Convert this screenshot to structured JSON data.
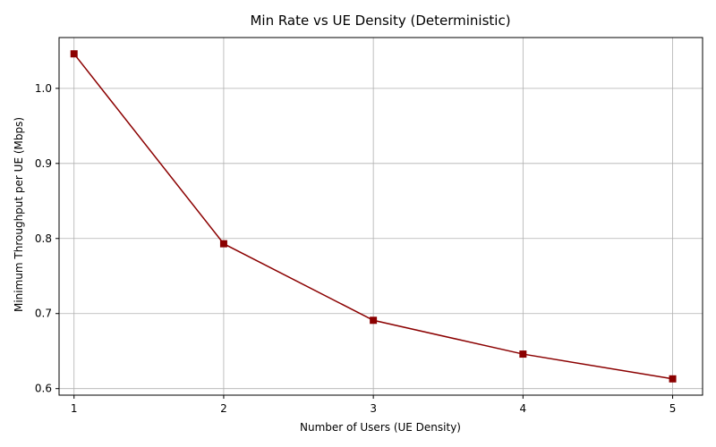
{
  "chart_data": {
    "type": "line",
    "title": "Min Rate vs UE Density (Deterministic)",
    "xlabel": "Number of Users (UE Density)",
    "ylabel": "Minimum Throughput per UE (Mbps)",
    "x": [
      1,
      2,
      3,
      4,
      5
    ],
    "series": [
      {
        "values": [
          1.046,
          0.793,
          0.691,
          0.646,
          0.613
        ]
      }
    ],
    "xlim": [
      0.9,
      5.2
    ],
    "ylim": [
      0.5913,
      1.0677
    ],
    "xticks": [
      1,
      2,
      3,
      4,
      5
    ],
    "yticks": [
      0.6,
      0.7,
      0.8,
      0.9,
      1.0
    ],
    "xtick_labels": [
      "1",
      "2",
      "3",
      "4",
      "5"
    ],
    "ytick_labels": [
      "0.6",
      "0.7",
      "0.8",
      "0.9",
      "1.0"
    ],
    "grid": true,
    "marker": "square",
    "line_color": "#8b0000"
  }
}
